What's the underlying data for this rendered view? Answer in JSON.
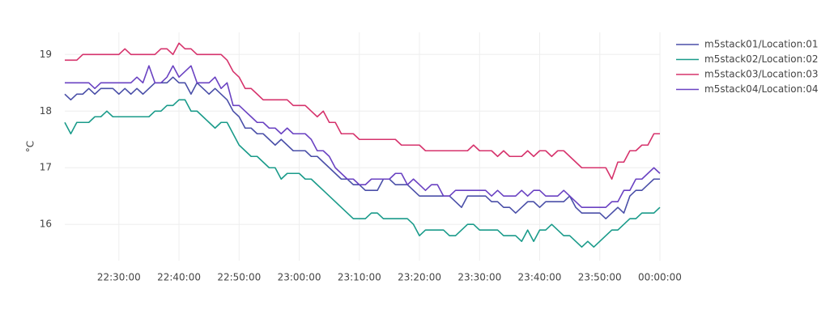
{
  "chart_data": {
    "type": "line",
    "y_label": "°C",
    "x": [
      "22:21:00",
      "22:22:00",
      "22:23:00",
      "22:24:00",
      "22:25:00",
      "22:26:00",
      "22:27:00",
      "22:28:00",
      "22:29:00",
      "22:30:00",
      "22:31:00",
      "22:32:00",
      "22:33:00",
      "22:34:00",
      "22:35:00",
      "22:36:00",
      "22:37:00",
      "22:38:00",
      "22:39:00",
      "22:40:00",
      "22:41:00",
      "22:42:00",
      "22:43:00",
      "22:44:00",
      "22:45:00",
      "22:46:00",
      "22:47:00",
      "22:48:00",
      "22:49:00",
      "22:50:00",
      "22:51:00",
      "22:52:00",
      "22:53:00",
      "22:54:00",
      "22:55:00",
      "22:56:00",
      "22:57:00",
      "22:58:00",
      "22:59:00",
      "23:00:00",
      "23:01:00",
      "23:02:00",
      "23:03:00",
      "23:04:00",
      "23:05:00",
      "23:06:00",
      "23:07:00",
      "23:08:00",
      "23:09:00",
      "23:10:00",
      "23:11:00",
      "23:12:00",
      "23:13:00",
      "23:14:00",
      "23:15:00",
      "23:16:00",
      "23:17:00",
      "23:18:00",
      "23:19:00",
      "23:20:00",
      "23:21:00",
      "23:22:00",
      "23:23:00",
      "23:24:00",
      "23:25:00",
      "23:26:00",
      "23:27:00",
      "23:28:00",
      "23:29:00",
      "23:30:00",
      "23:31:00",
      "23:32:00",
      "23:33:00",
      "23:34:00",
      "23:35:00",
      "23:36:00",
      "23:37:00",
      "23:38:00",
      "23:39:00",
      "23:40:00",
      "23:41:00",
      "23:42:00",
      "23:43:00",
      "23:44:00",
      "23:45:00",
      "23:46:00",
      "23:47:00",
      "23:48:00",
      "23:49:00",
      "23:50:00",
      "23:51:00",
      "23:52:00",
      "23:53:00",
      "23:54:00",
      "23:55:00",
      "23:56:00",
      "23:57:00",
      "23:58:00",
      "23:59:00",
      "00:00:00"
    ],
    "series": [
      {
        "name": "m5stack01/Location:01",
        "color": "#4a4fa8",
        "values": [
          18.3,
          18.2,
          18.3,
          18.3,
          18.4,
          18.3,
          18.4,
          18.4,
          18.4,
          18.3,
          18.4,
          18.3,
          18.4,
          18.3,
          18.4,
          18.5,
          18.5,
          18.5,
          18.6,
          18.5,
          18.5,
          18.3,
          18.5,
          18.4,
          18.3,
          18.4,
          18.3,
          18.2,
          18.0,
          17.9,
          17.7,
          17.7,
          17.6,
          17.6,
          17.5,
          17.4,
          17.5,
          17.4,
          17.3,
          17.3,
          17.3,
          17.2,
          17.2,
          17.1,
          17.0,
          16.9,
          16.8,
          16.8,
          16.7,
          16.7,
          16.6,
          16.6,
          16.6,
          16.8,
          16.8,
          16.7,
          16.7,
          16.7,
          16.6,
          16.5,
          16.5,
          16.5,
          16.5,
          16.5,
          16.5,
          16.4,
          16.3,
          16.5,
          16.5,
          16.5,
          16.5,
          16.4,
          16.4,
          16.3,
          16.3,
          16.2,
          16.3,
          16.4,
          16.4,
          16.3,
          16.4,
          16.4,
          16.4,
          16.4,
          16.5,
          16.3,
          16.2,
          16.2,
          16.2,
          16.2,
          16.1,
          16.2,
          16.3,
          16.2,
          16.5,
          16.6,
          16.6,
          16.7,
          16.8,
          16.8
        ]
      },
      {
        "name": "m5stack02/Location:02",
        "color": "#1a9b8a",
        "values": [
          17.8,
          17.6,
          17.8,
          17.8,
          17.8,
          17.9,
          17.9,
          18.0,
          17.9,
          17.9,
          17.9,
          17.9,
          17.9,
          17.9,
          17.9,
          18.0,
          18.0,
          18.1,
          18.1,
          18.2,
          18.2,
          18.0,
          18.0,
          17.9,
          17.8,
          17.7,
          17.8,
          17.8,
          17.6,
          17.4,
          17.3,
          17.2,
          17.2,
          17.1,
          17.0,
          17.0,
          16.8,
          16.9,
          16.9,
          16.9,
          16.8,
          16.8,
          16.7,
          16.6,
          16.5,
          16.4,
          16.3,
          16.2,
          16.1,
          16.1,
          16.1,
          16.2,
          16.2,
          16.1,
          16.1,
          16.1,
          16.1,
          16.1,
          16.0,
          15.8,
          15.9,
          15.9,
          15.9,
          15.9,
          15.8,
          15.8,
          15.9,
          16.0,
          16.0,
          15.9,
          15.9,
          15.9,
          15.9,
          15.8,
          15.8,
          15.8,
          15.7,
          15.9,
          15.7,
          15.9,
          15.9,
          16.0,
          15.9,
          15.8,
          15.8,
          15.7,
          15.6,
          15.7,
          15.6,
          15.7,
          15.8,
          15.9,
          15.9,
          16.0,
          16.1,
          16.1,
          16.2,
          16.2,
          16.2,
          16.3
        ]
      },
      {
        "name": "m5stack03/Location:03",
        "color": "#d6336c",
        "values": [
          18.9,
          18.9,
          18.9,
          19.0,
          19.0,
          19.0,
          19.0,
          19.0,
          19.0,
          19.0,
          19.1,
          19.0,
          19.0,
          19.0,
          19.0,
          19.0,
          19.1,
          19.1,
          19.0,
          19.2,
          19.1,
          19.1,
          19.0,
          19.0,
          19.0,
          19.0,
          19.0,
          18.9,
          18.7,
          18.6,
          18.4,
          18.4,
          18.3,
          18.2,
          18.2,
          18.2,
          18.2,
          18.2,
          18.1,
          18.1,
          18.1,
          18.0,
          17.9,
          18.0,
          17.8,
          17.8,
          17.6,
          17.6,
          17.6,
          17.5,
          17.5,
          17.5,
          17.5,
          17.5,
          17.5,
          17.5,
          17.4,
          17.4,
          17.4,
          17.4,
          17.3,
          17.3,
          17.3,
          17.3,
          17.3,
          17.3,
          17.3,
          17.3,
          17.4,
          17.3,
          17.3,
          17.3,
          17.2,
          17.3,
          17.2,
          17.2,
          17.2,
          17.3,
          17.2,
          17.3,
          17.3,
          17.2,
          17.3,
          17.3,
          17.2,
          17.1,
          17.0,
          17.0,
          17.0,
          17.0,
          17.0,
          16.8,
          17.1,
          17.1,
          17.3,
          17.3,
          17.4,
          17.4,
          17.6,
          17.6
        ]
      },
      {
        "name": "m5stack04/Location:04",
        "color": "#6a42c2",
        "values": [
          18.5,
          18.5,
          18.5,
          18.5,
          18.5,
          18.4,
          18.5,
          18.5,
          18.5,
          18.5,
          18.5,
          18.5,
          18.6,
          18.5,
          18.8,
          18.5,
          18.5,
          18.6,
          18.8,
          18.6,
          18.7,
          18.8,
          18.5,
          18.5,
          18.5,
          18.6,
          18.4,
          18.5,
          18.1,
          18.1,
          18.0,
          17.9,
          17.8,
          17.8,
          17.7,
          17.7,
          17.6,
          17.7,
          17.6,
          17.6,
          17.6,
          17.5,
          17.3,
          17.3,
          17.2,
          17.0,
          16.9,
          16.8,
          16.8,
          16.7,
          16.7,
          16.8,
          16.8,
          16.8,
          16.8,
          16.9,
          16.9,
          16.7,
          16.8,
          16.7,
          16.6,
          16.7,
          16.7,
          16.5,
          16.5,
          16.6,
          16.6,
          16.6,
          16.6,
          16.6,
          16.6,
          16.5,
          16.6,
          16.5,
          16.5,
          16.5,
          16.6,
          16.5,
          16.6,
          16.6,
          16.5,
          16.5,
          16.5,
          16.6,
          16.5,
          16.4,
          16.3,
          16.3,
          16.3,
          16.3,
          16.3,
          16.4,
          16.4,
          16.6,
          16.6,
          16.8,
          16.8,
          16.9,
          17.0,
          16.9
        ]
      }
    ],
    "xlim": [
      "22:21:00",
      "00:00:00"
    ],
    "xticks": [
      "22:30:00",
      "22:40:00",
      "22:50:00",
      "23:00:00",
      "23:10:00",
      "23:20:00",
      "23:30:00",
      "23:40:00",
      "23:50:00",
      "00:00:00"
    ],
    "ylim": [
      15.36,
      19.39
    ],
    "yticks": [
      16,
      17,
      18,
      19
    ],
    "grid": true,
    "legend": "right"
  }
}
